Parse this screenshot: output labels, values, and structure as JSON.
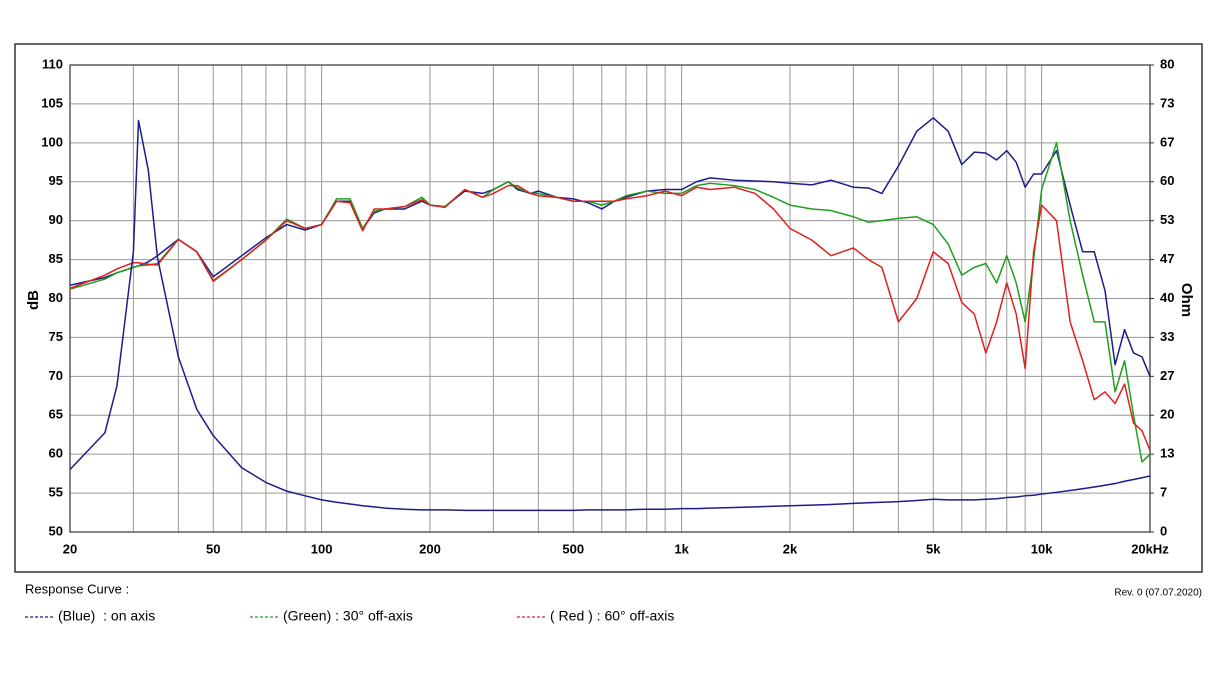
{
  "chart_data": {
    "type": "line",
    "ylabel": "dB",
    "y2label": "Ohm",
    "legend_title": "Response Curve :",
    "note": "Rev. 0 (07.07.2020)",
    "xscale": "log",
    "grid": true,
    "xlim": [
      20,
      20000
    ],
    "xticks": [
      20,
      50,
      100,
      200,
      500,
      {
        "value": 1000,
        "label": "1k"
      },
      {
        "value": 2000,
        "label": "2k"
      },
      {
        "value": 5000,
        "label": "5k"
      },
      {
        "value": 10000,
        "label": "10k"
      },
      {
        "value": 20000,
        "label": "20kHz"
      }
    ],
    "x_minor_ticks": [
      30,
      40,
      60,
      70,
      80,
      90,
      300,
      400,
      600,
      700,
      800,
      900,
      3000,
      4000,
      6000,
      7000,
      8000,
      9000
    ],
    "ylim": [
      50,
      110
    ],
    "yticks": [
      50,
      55,
      60,
      65,
      70,
      75,
      80,
      85,
      90,
      95,
      100,
      105,
      110
    ],
    "y2lim": [
      0,
      80
    ],
    "y2ticks": [
      0,
      {
        "value": 6.667,
        "label": "7"
      },
      {
        "value": 13.333,
        "label": "13"
      },
      20,
      {
        "value": 26.667,
        "label": "27"
      },
      {
        "value": 33.333,
        "label": "33"
      },
      40,
      {
        "value": 46.667,
        "label": "47"
      },
      {
        "value": 53.333,
        "label": "53"
      },
      60,
      {
        "value": 66.667,
        "label": "67"
      },
      {
        "value": 73.333,
        "label": "73"
      },
      80
    ],
    "x": [
      20,
      25,
      27,
      30,
      31,
      33,
      35,
      40,
      45,
      50,
      60,
      70,
      80,
      90,
      100,
      110,
      120,
      130,
      140,
      150,
      170,
      190,
      200,
      220,
      250,
      280,
      300,
      330,
      350,
      380,
      400,
      450,
      500,
      550,
      600,
      650,
      700,
      800,
      900,
      1000,
      1100,
      1200,
      1400,
      1600,
      1800,
      2000,
      2300,
      2600,
      3000,
      3300,
      3600,
      4000,
      4500,
      5000,
      5500,
      6000,
      6500,
      7000,
      7500,
      8000,
      8500,
      9000,
      9500,
      10000,
      11000,
      12000,
      13000,
      14000,
      15000,
      16000,
      17000,
      18000,
      19000,
      20000
    ],
    "series": [
      {
        "name": "(Blue)  : on axis",
        "color": "#1c1c8a",
        "values": [
          81.7,
          82.7,
          83.3,
          84,
          84.2,
          84.7,
          85.5,
          87.6,
          86,
          82.8,
          85.5,
          87.8,
          89.5,
          88.8,
          89.5,
          92.5,
          92.5,
          89,
          91,
          91.5,
          91.5,
          92.5,
          92,
          91.8,
          93.8,
          93.5,
          94,
          95,
          94,
          93.5,
          93.8,
          93,
          92.8,
          92.3,
          91.5,
          92.5,
          93,
          93.8,
          94,
          94,
          95,
          95.5,
          95.2,
          95.1,
          95,
          94.8,
          94.6,
          95.2,
          94.3,
          94.2,
          93.5,
          97,
          101.5,
          103.2,
          101.5,
          97.2,
          98.8,
          98.7,
          97.8,
          99,
          97.5,
          94.3,
          96,
          96,
          99,
          92,
          86,
          86,
          81,
          71.5,
          76,
          73,
          72.5,
          70
        ]
      },
      {
        "name": "(Green) : 30° off-axis",
        "color": "#1ea01e",
        "values": [
          81.2,
          82.5,
          83.3,
          84,
          84.2,
          84.3,
          84.5,
          87.6,
          86,
          82.3,
          85,
          87.5,
          90.2,
          89,
          89.5,
          92.8,
          92.8,
          89,
          91.2,
          91.5,
          91.8,
          93,
          92,
          91.8,
          94,
          93,
          94,
          95,
          94.2,
          93.5,
          93.5,
          93,
          92.5,
          92.5,
          92,
          92.5,
          93.2,
          93.8,
          93.5,
          93.5,
          94.5,
          94.8,
          94.5,
          94,
          93,
          92,
          91.5,
          91.3,
          90.5,
          89.8,
          90,
          90.3,
          90.5,
          89.5,
          87,
          83,
          84,
          84.5,
          82,
          85.5,
          82,
          77,
          85,
          94,
          100,
          90,
          83,
          77,
          77,
          68,
          72,
          65,
          59,
          60
        ]
      },
      {
        "name": "( Red ) : 60° off-axis",
        "color": "#e02020",
        "values": [
          81.3,
          83,
          83.8,
          84.6,
          84.6,
          84.4,
          84.3,
          87.6,
          86,
          82.2,
          85,
          87.5,
          90,
          89,
          89.5,
          92.5,
          92.3,
          88.7,
          91.5,
          91.5,
          91.8,
          92.7,
          92,
          91.7,
          94,
          93,
          93.5,
          94.5,
          94.5,
          93.5,
          93.2,
          93,
          92.5,
          92.5,
          92.5,
          92.5,
          92.8,
          93.2,
          93.8,
          93.2,
          94.3,
          94,
          94.3,
          93.5,
          91.5,
          89,
          87.5,
          85.5,
          86.5,
          85,
          84,
          77,
          80,
          86,
          84.5,
          79.5,
          78,
          73,
          77,
          82,
          78,
          71,
          86,
          92,
          90,
          77,
          72,
          67,
          68,
          66.5,
          69,
          64,
          63,
          60.5
        ]
      },
      {
        "color": "#1c1c8a",
        "axis": "y2",
        "values": [
          10.7,
          17,
          25,
          48,
          70.5,
          62,
          47,
          30,
          21,
          16.5,
          11,
          8.5,
          7,
          6.2,
          5.5,
          5.1,
          4.8,
          4.5,
          4.3,
          4.1,
          3.9,
          3.8,
          3.8,
          3.8,
          3.7,
          3.7,
          3.7,
          3.7,
          3.7,
          3.7,
          3.7,
          3.7,
          3.7,
          3.8,
          3.8,
          3.8,
          3.8,
          3.9,
          3.9,
          4,
          4,
          4.1,
          4.2,
          4.3,
          4.4,
          4.5,
          4.6,
          4.7,
          4.9,
          5,
          5.1,
          5.2,
          5.4,
          5.6,
          5.5,
          5.5,
          5.5,
          5.6,
          5.7,
          5.9,
          6,
          6.2,
          6.3,
          6.5,
          6.8,
          7.1,
          7.4,
          7.7,
          8,
          8.3,
          8.7,
          9,
          9.3,
          9.6
        ]
      }
    ]
  }
}
